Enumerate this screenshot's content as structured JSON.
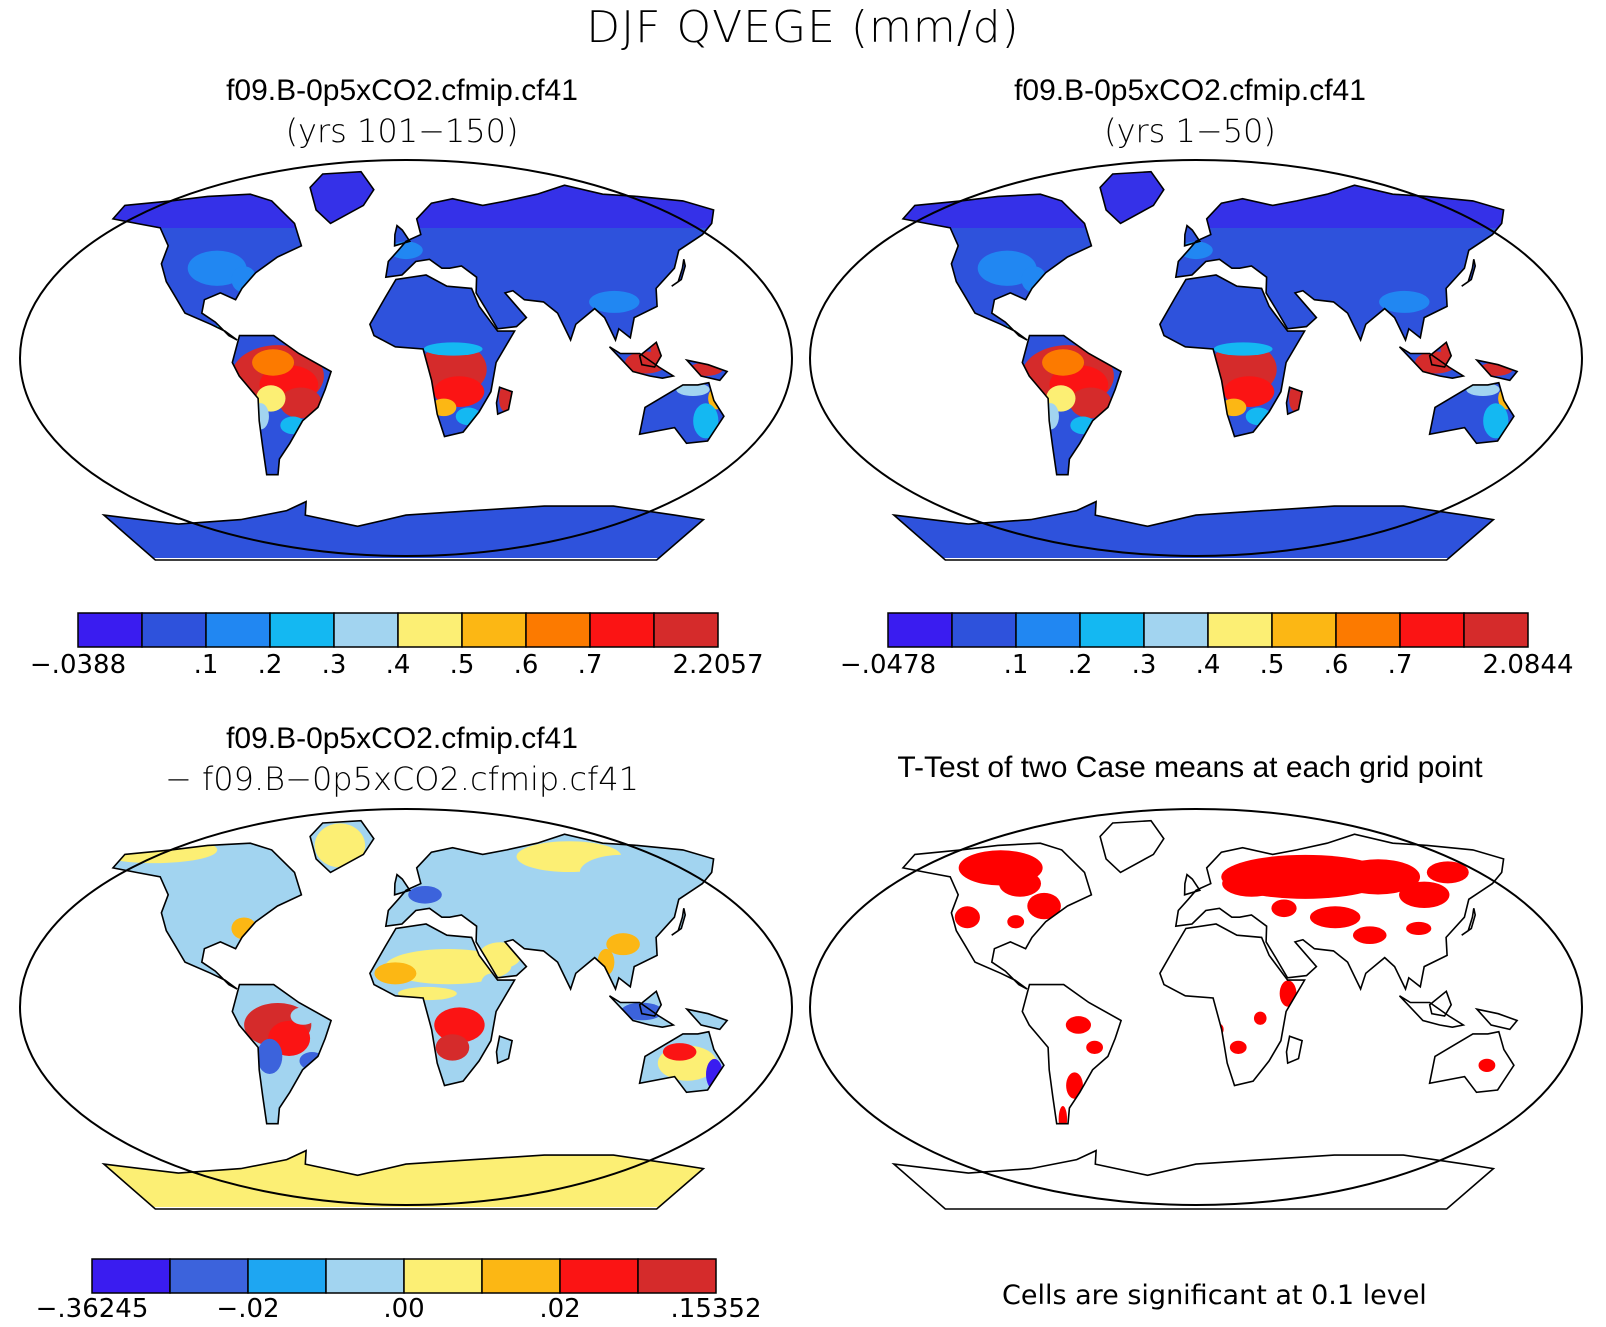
{
  "page": {
    "title": "DJF QVEGE (mm/d)"
  },
  "panels": [
    {
      "title": "f09.B-0p5xCO2.cfmip.cf41",
      "subtitle": "(yrs 101−150)",
      "kind": "field"
    },
    {
      "title": "f09.B-0p5xCO2.cfmip.cf41",
      "subtitle": "(yrs 1−50)",
      "kind": "field"
    },
    {
      "title": "f09.B-0p5xCO2.cfmip.cf41",
      "subtitle": "− f09.B−0p5xCO2.cfmip.cf41",
      "kind": "difference"
    },
    {
      "title": "T-Test of two Case means at each grid point",
      "subtitle": "",
      "kind": "ttest"
    }
  ],
  "colorbars": [
    {
      "colors": [
        "#3a1cf0",
        "#2e52dc",
        "#2187f2",
        "#14b8f2",
        "#a2d4f0",
        "#fcef74",
        "#fcb714",
        "#fc7a00",
        "#fb1414",
        "#d52b2b"
      ],
      "labels": [
        "−.0388",
        ".1",
        ".2",
        ".3",
        ".4",
        ".5",
        ".6",
        ".7",
        "2.2057"
      ],
      "label_positions": [
        0.0,
        0.2,
        0.3,
        0.4,
        0.5,
        0.6,
        0.7,
        0.8,
        1.0
      ]
    },
    {
      "colors": [
        "#3a1cf0",
        "#2e52dc",
        "#2187f2",
        "#14b8f2",
        "#a2d4f0",
        "#fcef74",
        "#fcb714",
        "#fc7a00",
        "#fb1414",
        "#d52b2b"
      ],
      "labels": [
        "−.0478",
        ".1",
        ".2",
        ".3",
        ".4",
        ".5",
        ".6",
        ".7",
        "2.0844"
      ],
      "label_positions": [
        0.0,
        0.2,
        0.3,
        0.4,
        0.5,
        0.6,
        0.7,
        0.8,
        1.0
      ]
    },
    {
      "colors": [
        "#3a1cf0",
        "#3c63dc",
        "#1ea6f2",
        "#a2d4f0",
        "#fcef74",
        "#fcb714",
        "#fb1414",
        "#d52b2b"
      ],
      "labels": [
        "−.36245",
        "−.02",
        ".00",
        ".02",
        ".15352"
      ],
      "label_positions": [
        0.0,
        0.25,
        0.5,
        0.75,
        1.0
      ]
    }
  ],
  "footnote": "Cells are significant at 0.1 level",
  "map_colors": {
    "ocean": "#ffffff",
    "coast": "#000000",
    "low": "#2e52dc",
    "high": "#d52b2b",
    "mid": "#fcef74",
    "signif": "#ff0000"
  }
}
